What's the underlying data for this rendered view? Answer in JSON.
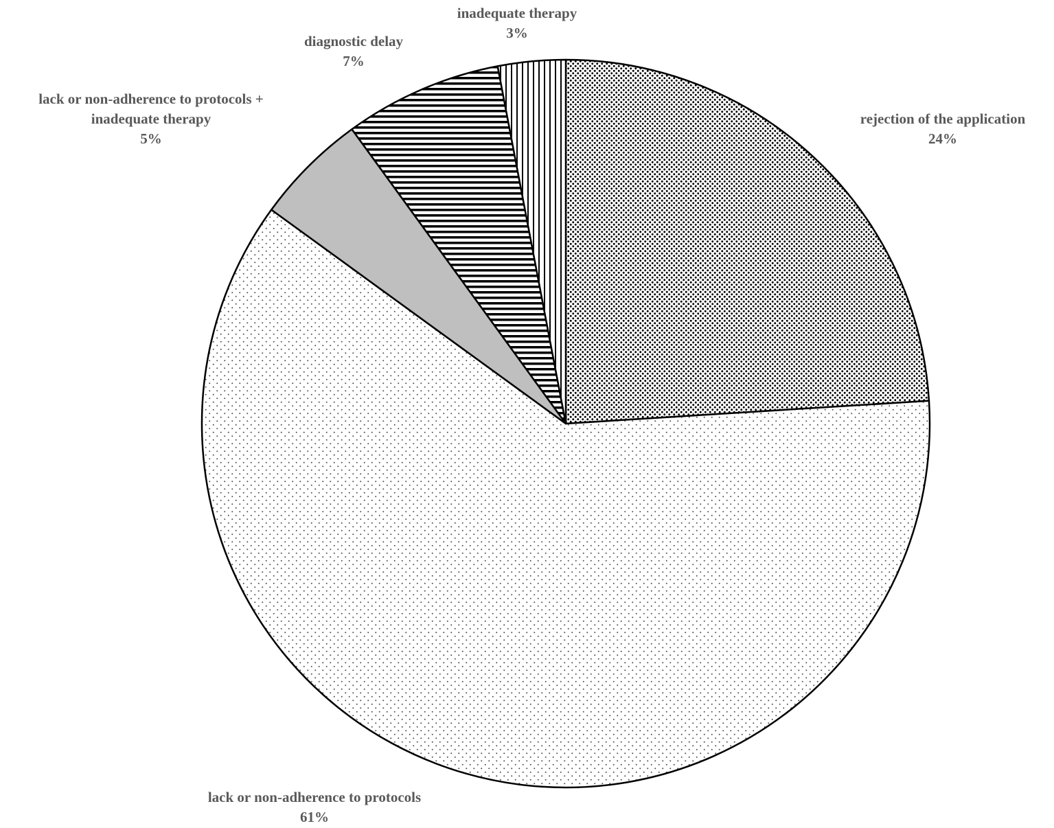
{
  "chart_data": {
    "type": "pie",
    "start_angle_deg": 0,
    "direction": "clockwise",
    "slices": [
      {
        "label": [
          "rejection of the application"
        ],
        "value": 24,
        "value_label": "24%",
        "pattern": "dense-dots"
      },
      {
        "label": [
          "lack or non-adherence to protocols"
        ],
        "value": 61,
        "value_label": "61%",
        "pattern": "sparse-dots"
      },
      {
        "label": [
          "lack or non-adherence to protocols +",
          "inadequate therapy"
        ],
        "value": 5,
        "value_label": "5%",
        "pattern": "solid-gray"
      },
      {
        "label": [
          "diagnostic delay"
        ],
        "value": 7,
        "value_label": "7%",
        "pattern": "horizontal-lines"
      },
      {
        "label": [
          "inadequate therapy"
        ],
        "value": 3,
        "value_label": "3%",
        "pattern": "vertical-lines"
      }
    ],
    "colors": {
      "outline": "#000000",
      "label_text": "#595959",
      "solid_gray": "#bfbfbf",
      "background": "#ffffff"
    }
  }
}
